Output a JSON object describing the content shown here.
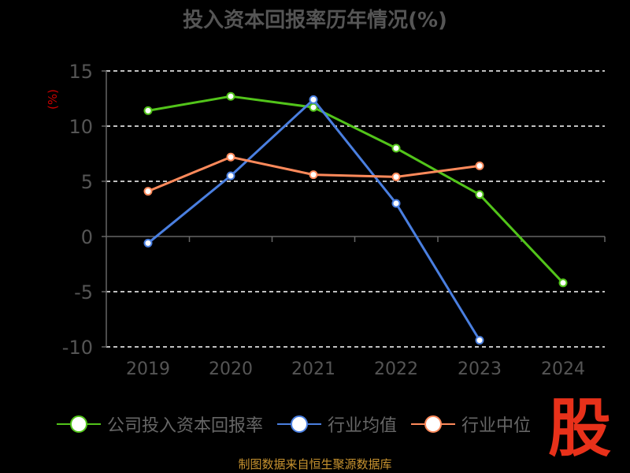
{
  "chart_data": {
    "type": "line",
    "title": "投入资本回报率历年情况(%)",
    "ylabel": "(%)",
    "categories": [
      "2019",
      "2020",
      "2021",
      "2022",
      "2023",
      "2024"
    ],
    "ylim": [
      -10,
      15
    ],
    "yticks": [
      15,
      10,
      5,
      0,
      -5,
      -10
    ],
    "grid": true,
    "legend_position": "bottom",
    "series": [
      {
        "name": "公司投入资本回报率",
        "color": "#52c41a",
        "values": [
          11.4,
          12.7,
          11.7,
          8.0,
          3.8,
          -4.2
        ]
      },
      {
        "name": "行业均值",
        "color": "#4a7fe0",
        "values": [
          -0.6,
          5.5,
          12.4,
          3.0,
          -9.4,
          null
        ]
      },
      {
        "name": "行业中位数",
        "color": "#ff8a5b",
        "values": [
          4.1,
          7.2,
          5.6,
          5.4,
          6.4,
          null
        ]
      }
    ]
  },
  "legend": [
    "公司投入资本回报率",
    "行业均值",
    "行业中位"
  ],
  "logo_text": "股",
  "footer": "制图数据来自恒生聚源数据库"
}
